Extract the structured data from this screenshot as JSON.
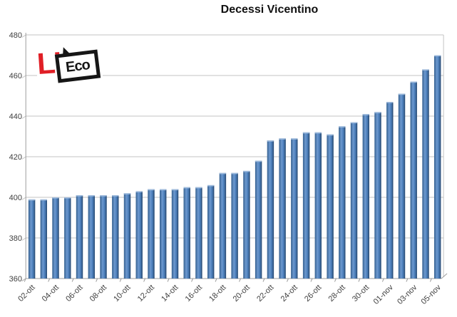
{
  "logo": {
    "red_part": "L’",
    "black_part": "Eco",
    "red_color": "#E01F26",
    "black_color": "#161616"
  },
  "chart_data": {
    "type": "bar",
    "title": "Decessi Vicentino",
    "xlabel": "",
    "ylabel": "",
    "categories": [
      "02-ott",
      "03-ott",
      "04-ott",
      "05-ott",
      "06-ott",
      "07-ott",
      "08-ott",
      "09-ott",
      "10-ott",
      "11-ott",
      "12-ott",
      "13-ott",
      "14-ott",
      "15-ott",
      "16-ott",
      "17-ott",
      "18-ott",
      "19-ott",
      "20-ott",
      "21-ott",
      "22-ott",
      "23-ott",
      "24-ott",
      "25-ott",
      "26-ott",
      "27-ott",
      "28-ott",
      "29-ott",
      "30-ott",
      "31-ott",
      "01-nov",
      "02-nov",
      "03-nov",
      "04-nov",
      "05-nov"
    ],
    "values": [
      399,
      399,
      400,
      400,
      401,
      401,
      401,
      401,
      402,
      403,
      404,
      404,
      404,
      405,
      405,
      406,
      412,
      412,
      413,
      418,
      428,
      429,
      429,
      432,
      432,
      431,
      435,
      437,
      441,
      442,
      447,
      451,
      457,
      463,
      470
    ],
    "ylim": [
      360,
      480
    ],
    "yticks": [
      360,
      380,
      400,
      420,
      440,
      460,
      480
    ],
    "x_label_every": 2,
    "grid": true,
    "legend": false,
    "colors": {
      "bar": "#4F81BD",
      "bar_light": "#6E9AD0",
      "bar_dark": "#35608F",
      "bar_top": "#9FBBDC",
      "gridline": "#C3C3C3",
      "axis": "#9E9E9E",
      "label": "#3F3F3F",
      "title": "#111111"
    }
  }
}
